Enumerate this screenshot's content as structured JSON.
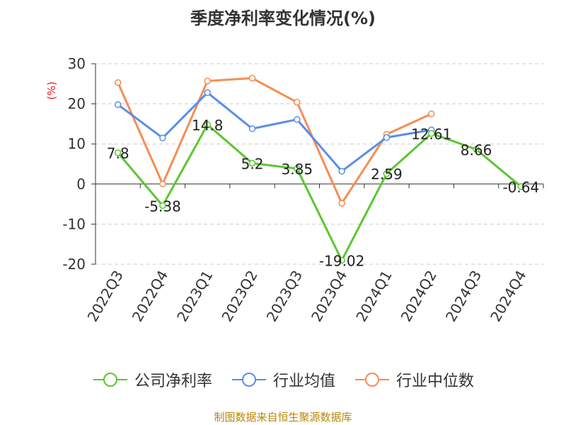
{
  "title": "季度净利率变化情况(%)",
  "source": "制图数据来自恒生聚源数据库",
  "chart_data": {
    "type": "line",
    "title": "季度净利率变化情况(%)",
    "ylabel": "(%)",
    "ylim": [
      -20,
      30
    ],
    "yticks": [
      30,
      20,
      10,
      0,
      -10,
      -20
    ],
    "grid": true,
    "legend_position": "bottom",
    "categories": [
      "2022Q3",
      "2022Q4",
      "2023Q1",
      "2023Q2",
      "2023Q3",
      "2023Q4",
      "2024Q1",
      "2024Q2",
      "2024Q3",
      "2024Q4"
    ],
    "series": [
      {
        "name": "公司净利率",
        "color": "#5bc72f",
        "values": [
          7.8,
          -5.38,
          14.8,
          5.2,
          3.85,
          -19.02,
          2.59,
          12.61,
          8.66,
          -0.64
        ],
        "labels": [
          "7.8",
          "-5.38",
          "14.8",
          "5.2",
          "3.85",
          "-19.02",
          "2.59",
          "12.61",
          "8.66",
          "-0.64"
        ]
      },
      {
        "name": "行业均值",
        "color": "#5b8ee6",
        "values": [
          19.8,
          11.5,
          22.8,
          13.8,
          16.1,
          3.2,
          11.6,
          13.5,
          null,
          null
        ]
      },
      {
        "name": "行业中位数",
        "color": "#f58d54",
        "values": [
          25.3,
          0.0,
          25.7,
          26.4,
          20.4,
          -4.8,
          12.4,
          17.5,
          null,
          null
        ]
      }
    ]
  }
}
